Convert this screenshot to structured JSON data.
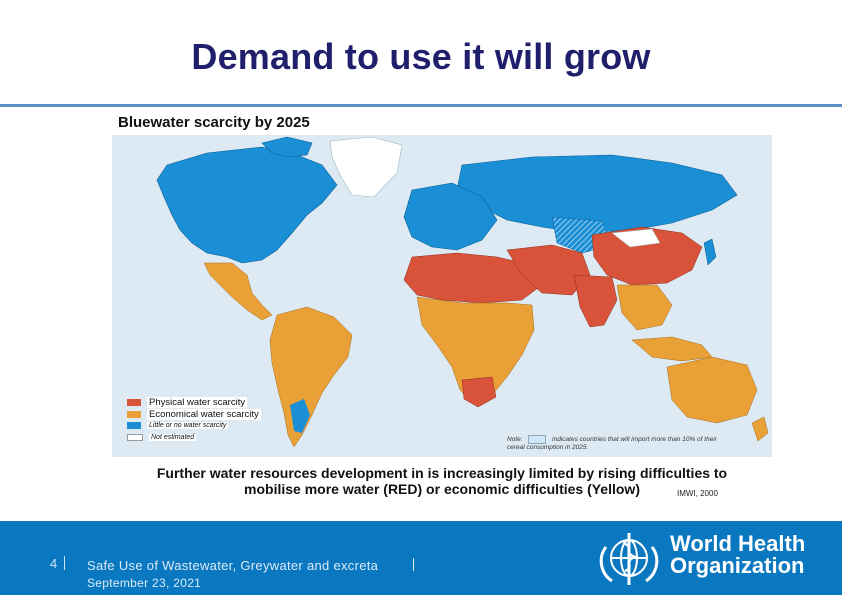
{
  "slide": {
    "title": "Demand to use it will grow",
    "subtitle": "Bluewater scarcity by 2025",
    "caption_line1": "Further water resources development in is increasingly limited by rising difficulties to",
    "caption_line2": "mobilise more water (RED) or economic difficulties (Yellow)",
    "credit": "IMWI, 2000"
  },
  "map": {
    "legend": [
      {
        "label": "Physical water scarcity",
        "color": "#d9533a"
      },
      {
        "label": "Economical water scarcity",
        "color": "#e9a137"
      },
      {
        "label": "Little or no water scarcity",
        "color": "#1a8fd6"
      },
      {
        "label": "Not estimated",
        "color": "#ffffff"
      }
    ],
    "note_label": "Note:",
    "note_text": "indicates countries that will import more than 10% of their cereal consumption in 2025."
  },
  "footer": {
    "page_number": "4",
    "title": "Safe Use of Wastewater, Greywater  and excreta",
    "date": "September 23, 2021",
    "org_line1": "World Health",
    "org_line2": "Organization",
    "bg_color": "#0a78c0"
  }
}
